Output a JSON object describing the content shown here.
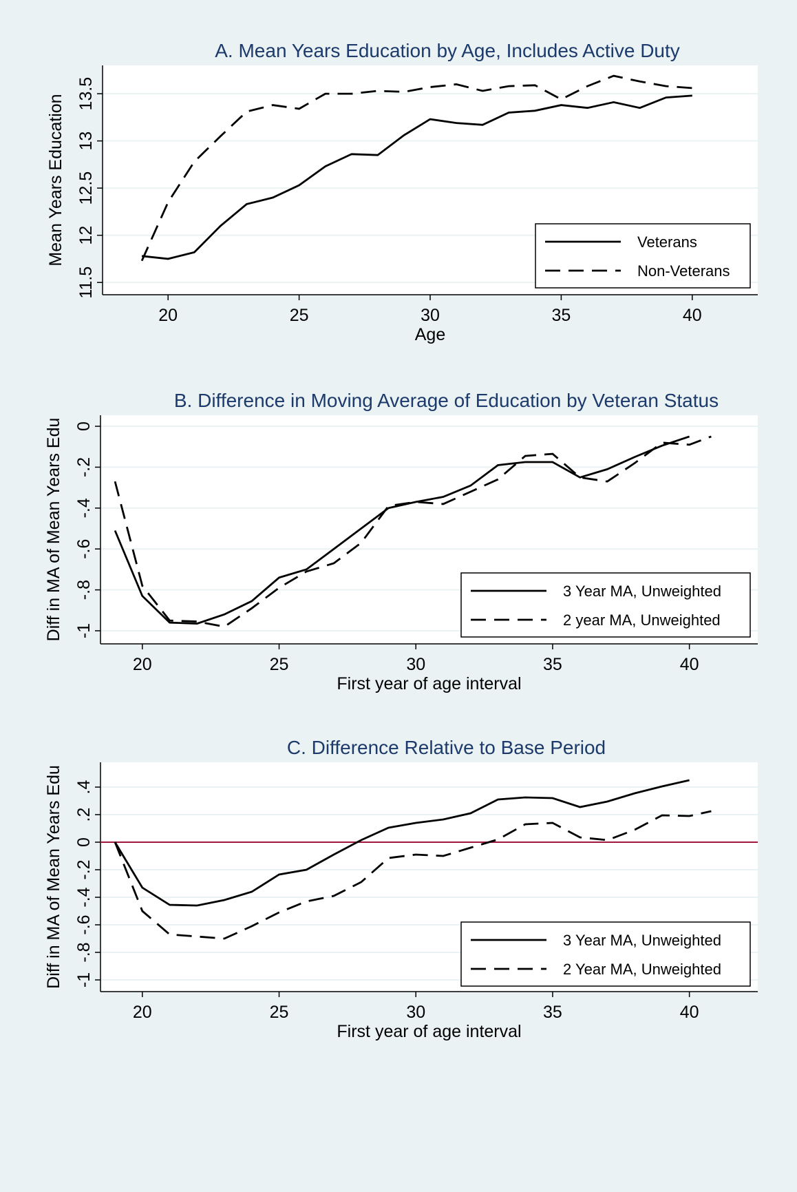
{
  "chart_data": [
    {
      "type": "line",
      "title": "A. Mean Years Education by Age, Includes Active Duty",
      "xlabel": "Age",
      "ylabel": "Mean Years Education",
      "xlim": [
        17.5,
        42.5
      ],
      "xticks": [
        20,
        25,
        30,
        35,
        40
      ],
      "ylim": [
        11.37,
        13.8
      ],
      "yticks": [
        11.5,
        12,
        12.5,
        13,
        13.5
      ],
      "grid": true,
      "legend_position": "lower right",
      "series": [
        {
          "name": "Veterans",
          "color": "#000000",
          "dash": "solid",
          "x": [
            19,
            20,
            21,
            22,
            23,
            24,
            25,
            26,
            27,
            28,
            29,
            30,
            31,
            32,
            33,
            34,
            35,
            36,
            37,
            38,
            39,
            40
          ],
          "values": [
            11.78,
            11.75,
            11.82,
            12.1,
            12.33,
            12.4,
            12.53,
            12.73,
            12.86,
            12.85,
            13.06,
            13.23,
            13.19,
            13.17,
            13.3,
            13.32,
            13.38,
            13.35,
            13.41,
            13.35,
            13.46,
            13.48
          ]
        },
        {
          "name": "Non-Veterans",
          "color": "#000000",
          "dash": "dashed",
          "x": [
            19,
            20,
            21,
            22,
            23,
            24,
            25,
            26,
            27,
            28,
            29,
            30,
            31,
            32,
            33,
            34,
            35,
            36,
            37,
            38,
            39,
            40
          ],
          "values": [
            11.73,
            12.35,
            12.78,
            13.05,
            13.31,
            13.38,
            13.34,
            13.5,
            13.5,
            13.53,
            13.52,
            13.57,
            13.6,
            13.53,
            13.58,
            13.59,
            13.44,
            13.58,
            13.69,
            13.63,
            13.58,
            13.56
          ]
        }
      ]
    },
    {
      "type": "line",
      "title": "B. Difference in Moving Average of Education by Veteran Status",
      "xlabel": "First year of age interval",
      "ylabel": "Diff in MA of Mean Years Edu",
      "xlim": [
        18.47,
        42.5
      ],
      "xticks": [
        20,
        25,
        30,
        35,
        40
      ],
      "ylim": [
        -1.064,
        0.054
      ],
      "yticks": [
        {
          "value": -1,
          "label": "-1"
        },
        {
          "value": -0.8,
          "label": "-.8"
        },
        {
          "value": -0.6,
          "label": "-.6"
        },
        {
          "value": -0.4,
          "label": "-.4"
        },
        {
          "value": -0.2,
          "label": "-.2"
        },
        0
      ],
      "grid": true,
      "legend_position": "lower right",
      "series": [
        {
          "name": "3 Year MA, Unweighted",
          "color": "#000000",
          "dash": "solid",
          "x": [
            19,
            20,
            21,
            22,
            23,
            24,
            25,
            26,
            27,
            28,
            29,
            30,
            31,
            32,
            33,
            34,
            35,
            36,
            37,
            38,
            39,
            40
          ],
          "values": [
            -0.51,
            -0.83,
            -0.96,
            -0.965,
            -0.92,
            -0.855,
            -0.74,
            -0.7,
            -0.6,
            -0.5,
            -0.4,
            -0.37,
            -0.345,
            -0.29,
            -0.19,
            -0.175,
            -0.175,
            -0.25,
            -0.21,
            -0.15,
            -0.095,
            -0.05
          ]
        },
        {
          "name": "2 year MA, Unweighted",
          "color": "#000000",
          "dash": "dashed",
          "x": [
            19,
            20,
            21,
            22,
            23,
            24,
            25,
            26,
            27,
            28,
            29,
            30,
            31,
            32,
            33,
            34,
            35,
            36,
            37,
            38,
            39,
            40,
            40.8
          ],
          "values": [
            -0.27,
            -0.78,
            -0.95,
            -0.955,
            -0.98,
            -0.89,
            -0.79,
            -0.71,
            -0.67,
            -0.57,
            -0.39,
            -0.37,
            -0.38,
            -0.32,
            -0.26,
            -0.145,
            -0.135,
            -0.25,
            -0.27,
            -0.18,
            -0.08,
            -0.09,
            -0.05
          ]
        }
      ]
    },
    {
      "type": "line",
      "title": "C. Difference Relative to Base Period",
      "xlabel": "First year of age interval",
      "ylabel": "Diff in MA of Mean Years Edu",
      "xlim": [
        18.47,
        42.5
      ],
      "xticks": [
        20,
        25,
        30,
        35,
        40
      ],
      "ylim": [
        -1.085,
        0.58
      ],
      "yticks": [
        {
          "value": -1,
          "label": "-1"
        },
        {
          "value": -0.8,
          "label": "-.8"
        },
        {
          "value": -0.6,
          "label": "-.6"
        },
        {
          "value": -0.4,
          "label": "-.4"
        },
        {
          "value": -0.2,
          "label": "-.2"
        },
        0,
        {
          "value": 0.2,
          "label": ".2"
        },
        {
          "value": 0.4,
          "label": ".4"
        }
      ],
      "grid": true,
      "legend_position": "lower right",
      "reference_line": {
        "value": 0,
        "color": "#a0173e"
      },
      "series": [
        {
          "name": "3 Year MA, Unweighted",
          "color": "#000000",
          "dash": "solid",
          "x": [
            19,
            20,
            21,
            22,
            23,
            24,
            25,
            26,
            27,
            28,
            29,
            30,
            31,
            32,
            33,
            34,
            35,
            36,
            37,
            38,
            39,
            40
          ],
          "values": [
            0,
            -0.33,
            -0.455,
            -0.46,
            -0.42,
            -0.36,
            -0.235,
            -0.2,
            -0.09,
            0.015,
            0.105,
            0.14,
            0.165,
            0.21,
            0.31,
            0.325,
            0.32,
            0.255,
            0.295,
            0.355,
            0.405,
            0.45
          ]
        },
        {
          "name": "2 Year MA, Unweighted",
          "color": "#000000",
          "dash": "dashed",
          "x": [
            19,
            20,
            21,
            22,
            23,
            24,
            25,
            26,
            27,
            28,
            29,
            30,
            31,
            32,
            33,
            34,
            35,
            36,
            37,
            38,
            39,
            40,
            40.8
          ],
          "values": [
            0,
            -0.5,
            -0.67,
            -0.685,
            -0.7,
            -0.61,
            -0.51,
            -0.43,
            -0.39,
            -0.29,
            -0.115,
            -0.09,
            -0.1,
            -0.04,
            0.02,
            0.13,
            0.14,
            0.035,
            0.015,
            0.09,
            0.195,
            0.19,
            0.225
          ]
        }
      ]
    }
  ]
}
